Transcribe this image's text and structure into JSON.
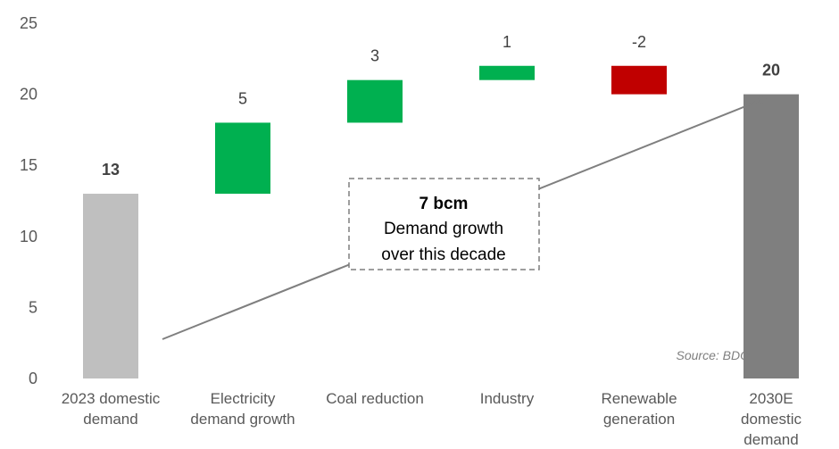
{
  "chart_data": {
    "type": "bar",
    "subtype": "waterfall",
    "categories": [
      [
        "2023 domestic",
        "demand"
      ],
      [
        "Electricity",
        "demand growth"
      ],
      [
        "Coal reduction"
      ],
      [
        "Industry"
      ],
      [
        "Renewable",
        "generation"
      ],
      [
        "2030E",
        "domestic",
        "demand"
      ]
    ],
    "bars": [
      {
        "kind": "total",
        "start": 0,
        "end": 13,
        "value": 13,
        "label": "13",
        "color": "#bfbfbf"
      },
      {
        "kind": "delta",
        "start": 13,
        "end": 18,
        "value": 5,
        "label": "5",
        "color": "#00b050"
      },
      {
        "kind": "delta",
        "start": 18,
        "end": 21,
        "value": 3,
        "label": "3",
        "color": "#00b050"
      },
      {
        "kind": "delta",
        "start": 21,
        "end": 22,
        "value": 1,
        "label": "1",
        "color": "#00b050"
      },
      {
        "kind": "delta",
        "start": 22,
        "end": 20,
        "value": -2,
        "label": "-2",
        "color": "#c00000"
      },
      {
        "kind": "total",
        "start": 0,
        "end": 20,
        "value": 20,
        "label": "20",
        "color": "#7f7f7f"
      }
    ],
    "yticks": [
      "0",
      "5",
      "10",
      "15",
      "20",
      "25"
    ],
    "ylim": [
      0,
      25
    ],
    "grid": false,
    "annotation": {
      "headline": "7 bcm",
      "lines": [
        "Demand growth",
        "over this decade"
      ]
    },
    "source": "Source: BDO"
  }
}
